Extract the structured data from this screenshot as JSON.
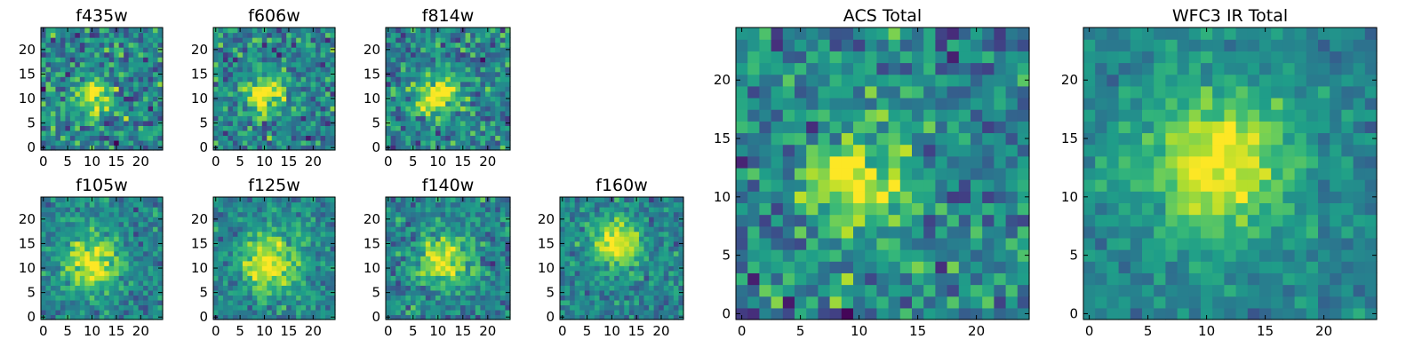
{
  "colors": {
    "colormap": "viridis",
    "frame": "#000000",
    "background": "#ffffff"
  },
  "chart_data": [
    {
      "type": "heatmap",
      "title": "f435w",
      "xticks": [
        "0",
        "5",
        "10",
        "15",
        "20"
      ],
      "yticks": [
        "0",
        "5",
        "10",
        "15",
        "20"
      ],
      "xlim": [
        -0.5,
        24.5
      ],
      "ylim": [
        -0.5,
        24.5
      ],
      "grid": false,
      "colormap": "viridis",
      "peak": [
        10,
        11
      ],
      "width": 2.5,
      "noise": 0.55,
      "seed": 11
    },
    {
      "type": "heatmap",
      "title": "f606w",
      "xticks": [
        "0",
        "5",
        "10",
        "15",
        "20"
      ],
      "yticks": [
        "0",
        "5",
        "10",
        "15",
        "20"
      ],
      "xlim": [
        -0.5,
        24.5
      ],
      "ylim": [
        -0.5,
        24.5
      ],
      "grid": false,
      "colormap": "viridis",
      "peak": [
        10,
        11
      ],
      "width": 2.8,
      "noise": 0.5,
      "seed": 23
    },
    {
      "type": "heatmap",
      "title": "f814w",
      "xticks": [
        "0",
        "5",
        "10",
        "15",
        "20"
      ],
      "yticks": [
        "0",
        "5",
        "10",
        "15",
        "20"
      ],
      "xlim": [
        -0.5,
        24.5
      ],
      "ylim": [
        -0.5,
        24.5
      ],
      "grid": false,
      "colormap": "viridis",
      "peak": [
        10,
        11
      ],
      "width": 3.0,
      "noise": 0.5,
      "seed": 37
    },
    {
      "type": "heatmap",
      "title": "f105w",
      "xticks": [
        "0",
        "5",
        "10",
        "15",
        "20"
      ],
      "yticks": [
        "0",
        "5",
        "10",
        "15",
        "20"
      ],
      "xlim": [
        -0.5,
        24.5
      ],
      "ylim": [
        -0.5,
        24.5
      ],
      "grid": false,
      "colormap": "viridis",
      "peak": [
        10,
        11
      ],
      "width": 3.8,
      "noise": 0.35,
      "seed": 41
    },
    {
      "type": "heatmap",
      "title": "f125w",
      "xticks": [
        "0",
        "5",
        "10",
        "15",
        "20"
      ],
      "yticks": [
        "0",
        "5",
        "10",
        "15",
        "20"
      ],
      "xlim": [
        -0.5,
        24.5
      ],
      "ylim": [
        -0.5,
        24.5
      ],
      "grid": false,
      "colormap": "viridis",
      "peak": [
        11,
        11
      ],
      "width": 4.2,
      "noise": 0.35,
      "seed": 53
    },
    {
      "type": "heatmap",
      "title": "f140w",
      "xticks": [
        "0",
        "5",
        "10",
        "15",
        "20"
      ],
      "yticks": [
        "0",
        "5",
        "10",
        "15",
        "20"
      ],
      "xlim": [
        -0.5,
        24.5
      ],
      "ylim": [
        -0.5,
        24.5
      ],
      "grid": false,
      "colormap": "viridis",
      "peak": [
        11,
        12
      ],
      "width": 3.6,
      "noise": 0.4,
      "seed": 67
    },
    {
      "type": "heatmap",
      "title": "f160w",
      "xticks": [
        "0",
        "5",
        "10",
        "15",
        "20"
      ],
      "yticks": [
        "0",
        "5",
        "10",
        "15",
        "20"
      ],
      "xlim": [
        -0.5,
        24.5
      ],
      "ylim": [
        -0.5,
        24.5
      ],
      "grid": false,
      "colormap": "viridis",
      "peak": [
        11,
        15
      ],
      "width": 3.4,
      "noise": 0.35,
      "seed": 79
    },
    {
      "type": "heatmap",
      "title": "ACS Total",
      "xticks": [
        "0",
        "5",
        "10",
        "15",
        "20"
      ],
      "yticks": [
        "0",
        "5",
        "10",
        "15",
        "20"
      ],
      "xlim": [
        -0.5,
        24.5
      ],
      "ylim": [
        -0.5,
        24.5
      ],
      "grid": false,
      "colormap": "viridis",
      "peak": [
        10,
        11
      ],
      "width": 2.8,
      "noise": 0.5,
      "seed": 97
    },
    {
      "type": "heatmap",
      "title": "WFC3 IR Total",
      "xticks": [
        "0",
        "5",
        "10",
        "15",
        "20"
      ],
      "yticks": [
        "0",
        "5",
        "10",
        "15",
        "20"
      ],
      "xlim": [
        -0.5,
        24.5
      ],
      "ylim": [
        -0.5,
        24.5
      ],
      "grid": false,
      "colormap": "viridis",
      "peak": [
        11,
        13
      ],
      "width": 4.5,
      "noise": 0.25,
      "seed": 101
    }
  ]
}
